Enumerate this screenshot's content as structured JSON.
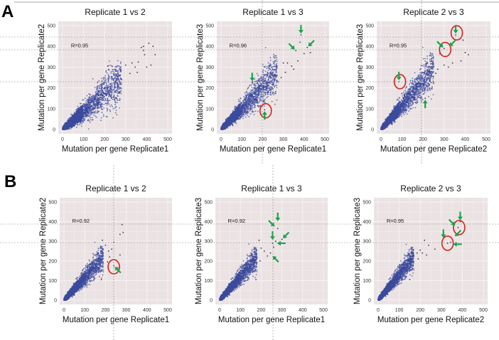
{
  "figure": {
    "panels": [
      {
        "letter": "A"
      },
      {
        "letter": "B"
      }
    ]
  },
  "colors": {
    "point": "#3b4a9c",
    "plot_bg": "#ebe3e3",
    "grid": "#f7f3f3",
    "arrow": "#1aa34a",
    "circle": "#d0211b",
    "guide": "#888888"
  },
  "chart_data": [
    {
      "type": "scatter",
      "row": "A",
      "title": "Replicate 1 vs 2",
      "xlabel": "Mutation per gene Replicate1",
      "ylabel": "Mutation per gene Replicate2",
      "xlim": [
        0,
        500
      ],
      "ylim": [
        0,
        500
      ],
      "xticks": [
        "0",
        "100",
        "200",
        "300",
        "400",
        "500"
      ],
      "yticks": [
        "0",
        "100",
        "200",
        "300",
        "400",
        "500"
      ],
      "annotation": "R=0.95",
      "correlation": 0.95,
      "grid": true,
      "cloud": {
        "slope": 0.85,
        "spread": 0.35,
        "xmax": 270
      },
      "outliers": [
        [
          330,
          320
        ],
        [
          360,
          325
        ],
        [
          375,
          395
        ],
        [
          385,
          400
        ],
        [
          385,
          380
        ],
        [
          390,
          360
        ],
        [
          410,
          415
        ],
        [
          420,
          310
        ],
        [
          430,
          400
        ],
        [
          440,
          360
        ],
        [
          400,
          300
        ],
        [
          300,
          310
        ],
        [
          320,
          270
        ],
        [
          345,
          300
        ],
        [
          355,
          275
        ],
        [
          275,
          285
        ],
        [
          280,
          240
        ],
        [
          250,
          230
        ],
        [
          255,
          150
        ],
        [
          215,
          305
        ]
      ],
      "arrows": [],
      "circles": []
    },
    {
      "type": "scatter",
      "row": "A",
      "title": "Replicate 1 vs 3",
      "xlabel": "Mutation per gene Replicate1",
      "ylabel": "Mutation per gene Replicate3",
      "xlim": [
        0,
        500
      ],
      "ylim": [
        0,
        500
      ],
      "xticks": [
        "0",
        "100",
        "200",
        "300",
        "400",
        "500"
      ],
      "yticks": [
        "0",
        "100",
        "200",
        "300",
        "400",
        "500"
      ],
      "annotation": "R=0.96",
      "correlation": 0.96,
      "grid": true,
      "cloud": {
        "slope": 1.0,
        "spread": 0.32,
        "xmax": 260
      },
      "outliers": [
        [
          385,
          455
        ],
        [
          380,
          420
        ],
        [
          360,
          380
        ],
        [
          415,
          395
        ],
        [
          400,
          365
        ],
        [
          430,
          370
        ],
        [
          370,
          330
        ],
        [
          320,
          320
        ],
        [
          340,
          305
        ],
        [
          350,
          290
        ],
        [
          300,
          320
        ],
        [
          310,
          275
        ],
        [
          290,
          250
        ],
        [
          275,
          230
        ],
        [
          230,
          225
        ],
        [
          210,
          95
        ],
        [
          150,
          225
        ],
        [
          260,
          260
        ]
      ],
      "arrows": [
        [
          385,
          455,
          "down"
        ],
        [
          360,
          380,
          "down-right"
        ],
        [
          415,
          395,
          "down-left"
        ],
        [
          150,
          225,
          "down"
        ],
        [
          210,
          95,
          "up"
        ]
      ],
      "circles": [
        [
          215,
          90
        ]
      ]
    },
    {
      "type": "scatter",
      "row": "A",
      "title": "Replicate 2 vs 3",
      "xlabel": "Mutation per gene Replicate2",
      "ylabel": "Mutation per gene Replicate3",
      "xlim": [
        0,
        500
      ],
      "ylim": [
        0,
        500
      ],
      "xticks": [
        "0",
        "100",
        "200",
        "300",
        "400",
        "500"
      ],
      "yticks": [
        "0",
        "100",
        "200",
        "300",
        "400",
        "500"
      ],
      "annotation": "R=0.95",
      "correlation": 0.95,
      "grid": true,
      "cloud": {
        "slope": 1.15,
        "spread": 0.32,
        "xmax": 240
      },
      "outliers": [
        [
          355,
          455
        ],
        [
          390,
          430
        ],
        [
          400,
          370
        ],
        [
          415,
          360
        ],
        [
          300,
          390
        ],
        [
          280,
          365
        ],
        [
          340,
          320
        ],
        [
          320,
          300
        ],
        [
          300,
          310
        ],
        [
          270,
          290
        ],
        [
          250,
          300
        ],
        [
          240,
          330
        ],
        [
          380,
          330
        ],
        [
          85,
          230
        ],
        [
          210,
          150
        ],
        [
          260,
          270
        ],
        [
          230,
          280
        ]
      ],
      "arrows": [
        [
          355,
          455,
          "down"
        ],
        [
          300,
          390,
          "down-right"
        ],
        [
          320,
          395,
          "down-left"
        ],
        [
          85,
          230,
          "down"
        ],
        [
          210,
          150,
          "up"
        ]
      ],
      "circles": [
        [
          90,
          230
        ],
        [
          305,
          385
        ],
        [
          360,
          465
        ]
      ]
    },
    {
      "type": "scatter",
      "row": "B",
      "title": "Replicate 1 vs 2",
      "xlabel": "Mutation per gene Replicate1",
      "ylabel": "Mutation per gene Replicate2",
      "xlim": [
        0,
        500
      ],
      "ylim": [
        0,
        500
      ],
      "xticks": [
        "0",
        "100",
        "200",
        "300",
        "400",
        "500"
      ],
      "yticks": [
        "0",
        "100",
        "200",
        "300",
        "400",
        "500"
      ],
      "annotation": "R=0.92",
      "correlation": 0.92,
      "grid": true,
      "cloud": {
        "slope": 1.15,
        "spread": 0.3,
        "xmax": 180
      },
      "outliers": [
        [
          280,
          385
        ],
        [
          285,
          345
        ],
        [
          270,
          335
        ],
        [
          240,
          295
        ],
        [
          200,
          280
        ],
        [
          215,
          250
        ],
        [
          230,
          260
        ],
        [
          270,
          230
        ],
        [
          240,
          175
        ],
        [
          180,
          105
        ],
        [
          185,
          305
        ],
        [
          220,
          220
        ],
        [
          210,
          195
        ]
      ],
      "arrows": [
        [
          240,
          175,
          "up-left"
        ]
      ],
      "circles": [
        [
          240,
          170
        ]
      ]
    },
    {
      "type": "scatter",
      "row": "B",
      "title": "Replicate 1 vs 3",
      "xlabel": "Mutation per gene Replicate1",
      "ylabel": "Mutation per gene Replicate3",
      "xlim": [
        0,
        500
      ],
      "ylim": [
        0,
        500
      ],
      "xticks": [
        "0",
        "100",
        "200",
        "300",
        "400",
        "500"
      ],
      "yticks": [
        "0",
        "100",
        "200",
        "300",
        "400",
        "500"
      ],
      "annotation": "R=0.92",
      "correlation": 0.92,
      "grid": true,
      "cloud": {
        "slope": 1.2,
        "spread": 0.3,
        "xmax": 170
      },
      "outliers": [
        [
          280,
          365
        ],
        [
          270,
          300
        ],
        [
          255,
          290
        ],
        [
          245,
          240
        ],
        [
          190,
          305
        ],
        [
          200,
          265
        ],
        [
          215,
          250
        ],
        [
          230,
          225
        ],
        [
          180,
          215
        ],
        [
          195,
          200
        ],
        [
          175,
          105
        ],
        [
          300,
          310
        ],
        [
          260,
          270
        ]
      ],
      "arrows": [
        [
          280,
          395,
          "down"
        ],
        [
          270,
          370,
          "down-right"
        ],
        [
          255,
          300,
          "down"
        ],
        [
          300,
          310,
          "down-left"
        ],
        [
          270,
          290,
          "left"
        ],
        [
          250,
          230,
          "up-left"
        ]
      ],
      "circles": []
    },
    {
      "type": "scatter",
      "row": "B",
      "title": "Replicate 2 vs 3",
      "xlabel": "Mutation per gene Replicate2",
      "ylabel": "Mutation per gene Replicate3",
      "xlim": [
        0,
        500
      ],
      "ylim": [
        0,
        500
      ],
      "xticks": [
        "0",
        "100",
        "200",
        "300",
        "400",
        "500"
      ],
      "yticks": [
        "0",
        "100",
        "200",
        "300",
        "400",
        "500"
      ],
      "annotation": "R=0.95",
      "correlation": 0.95,
      "grid": true,
      "cloud": {
        "slope": 1.3,
        "spread": 0.3,
        "xmax": 160
      },
      "outliers": [
        [
          220,
          305
        ],
        [
          240,
          280
        ],
        [
          200,
          255
        ],
        [
          185,
          240
        ],
        [
          210,
          240
        ],
        [
          230,
          230
        ],
        [
          190,
          210
        ],
        [
          270,
          260
        ],
        [
          380,
          370
        ],
        [
          390,
          400
        ],
        [
          330,
          290
        ],
        [
          345,
          295
        ],
        [
          150,
          105
        ]
      ],
      "arrows": [
        [
          390,
          400,
          "down"
        ],
        [
          370,
          375,
          "down-right"
        ],
        [
          310,
          310,
          "down"
        ],
        [
          360,
          320,
          "down-left"
        ],
        [
          350,
          285,
          "left"
        ]
      ],
      "circles": [
        [
          385,
          370
        ],
        [
          330,
          290
        ]
      ]
    }
  ]
}
